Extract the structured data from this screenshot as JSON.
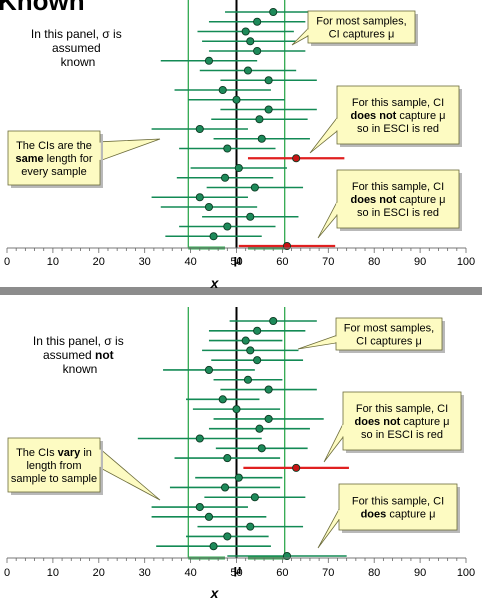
{
  "heading": "Known",
  "colors": {
    "ci_capture": "#138a55",
    "ci_miss": "#e02020",
    "point_capture": "#1e8a5a",
    "point_miss": "#c81414",
    "mu_line": "#000000",
    "ref_line": "#2fa84f",
    "callout_fill": "#fdfbc2",
    "callout_stroke": "#6b6b3a",
    "divider": "#8c8c8c"
  },
  "axis": {
    "min": 0,
    "max": 100,
    "ticks": [
      0,
      10,
      20,
      30,
      40,
      50,
      60,
      70,
      80,
      90,
      100
    ],
    "ticklabels": [
      "0",
      "10",
      "20",
      "30",
      "40",
      "50",
      "60",
      "70",
      "80",
      "90",
      "100"
    ],
    "title": "x",
    "mu_label": "μ"
  },
  "chart_data": [
    {
      "type": "forest",
      "population_mean": 50,
      "reference_lines": [
        39.5,
        60.5
      ],
      "xlim": [
        0,
        100
      ],
      "xlabel": "x",
      "ticklabels": [
        "0",
        "10",
        "20",
        "30",
        "40",
        "50",
        "60",
        "70",
        "80",
        "90",
        "100"
      ],
      "sample_means": [
        58,
        54.5,
        52,
        53,
        54.5,
        44,
        52.5,
        57,
        47,
        50,
        57,
        55,
        42,
        55.5,
        48,
        63,
        50.5,
        47.5,
        54,
        42,
        44,
        53,
        48,
        45,
        61
      ],
      "ci_half_width": 10.5,
      "ci_captures_mu": [
        true,
        true,
        true,
        true,
        true,
        true,
        true,
        true,
        true,
        true,
        true,
        true,
        true,
        true,
        true,
        false,
        true,
        true,
        true,
        true,
        true,
        true,
        true,
        true,
        false
      ]
    },
    {
      "type": "forest",
      "population_mean": 50,
      "reference_lines": [
        39.5,
        60.5
      ],
      "xlim": [
        0,
        100
      ],
      "xlabel": "x",
      "ticklabels": [
        "0",
        "10",
        "20",
        "30",
        "40",
        "50",
        "60",
        "70",
        "80",
        "90",
        "100"
      ],
      "sample_means": [
        58,
        54.5,
        52,
        53,
        54.5,
        44,
        52.5,
        57,
        47,
        50,
        57,
        55,
        42,
        55.5,
        48,
        63,
        50.5,
        47.5,
        54,
        42,
        44,
        53,
        48,
        45,
        61
      ],
      "ci_half_widths": [
        9.5,
        10.5,
        8,
        10.5,
        10,
        10,
        7.5,
        10.5,
        8,
        9.5,
        12,
        11,
        13.5,
        10,
        11.5,
        11.5,
        9.5,
        12,
        11,
        10.5,
        12.5,
        11.5,
        9,
        12.5,
        13
      ],
      "ci_captures_mu": [
        true,
        true,
        true,
        true,
        true,
        true,
        true,
        true,
        true,
        true,
        true,
        true,
        true,
        true,
        true,
        false,
        true,
        true,
        true,
        true,
        true,
        true,
        true,
        true,
        true
      ]
    }
  ],
  "panels": [
    {
      "description_pre": "In this panel, σ is",
      "description_mid": "assumed",
      "description_bold": "",
      "description_post": "known",
      "callouts": [
        {
          "lines": [
            [
              {
                "t": "For most samples,"
              }
            ],
            [
              {
                "t": "CI captures μ"
              }
            ]
          ]
        },
        {
          "lines": [
            [
              {
                "t": "For this sample, CI"
              }
            ],
            [
              {
                "t": "does not",
                "b": true
              },
              {
                "t": " capture μ"
              }
            ],
            [
              {
                "t": "so in ESCI is red"
              }
            ]
          ]
        },
        {
          "lines": [
            [
              {
                "t": "The CIs are the"
              }
            ],
            [
              {
                "t": "same",
                "b": true
              },
              {
                "t": " length  for"
              }
            ],
            [
              {
                "t": "every sample"
              }
            ]
          ]
        },
        {
          "lines": [
            [
              {
                "t": "For this sample, CI"
              }
            ],
            [
              {
                "t": "does not",
                "b": true
              },
              {
                "t": " capture μ"
              }
            ],
            [
              {
                "t": "so in ESCI is red"
              }
            ]
          ]
        }
      ]
    },
    {
      "description_pre": "In this panel, σ is",
      "description_mid": "assumed ",
      "description_bold": "not",
      "description_post": "known",
      "callouts": [
        {
          "lines": [
            [
              {
                "t": "For most samples,"
              }
            ],
            [
              {
                "t": "CI captures μ"
              }
            ]
          ]
        },
        {
          "lines": [
            [
              {
                "t": "For this sample, CI"
              }
            ],
            [
              {
                "t": "does not",
                "b": true
              },
              {
                "t": " capture μ"
              }
            ],
            [
              {
                "t": "so in ESCI is red"
              }
            ]
          ]
        },
        {
          "lines": [
            [
              {
                "t": "The CIs "
              },
              {
                "t": "vary",
                "b": true
              },
              {
                "t": " in"
              }
            ],
            [
              {
                "t": "length  from"
              }
            ],
            [
              {
                "t": "sample to sample"
              }
            ]
          ]
        },
        {
          "lines": [
            [
              {
                "t": "For this sample, CI"
              }
            ],
            [
              {
                "t": "does",
                "b": true
              },
              {
                "t": " capture μ"
              }
            ]
          ]
        }
      ]
    }
  ]
}
